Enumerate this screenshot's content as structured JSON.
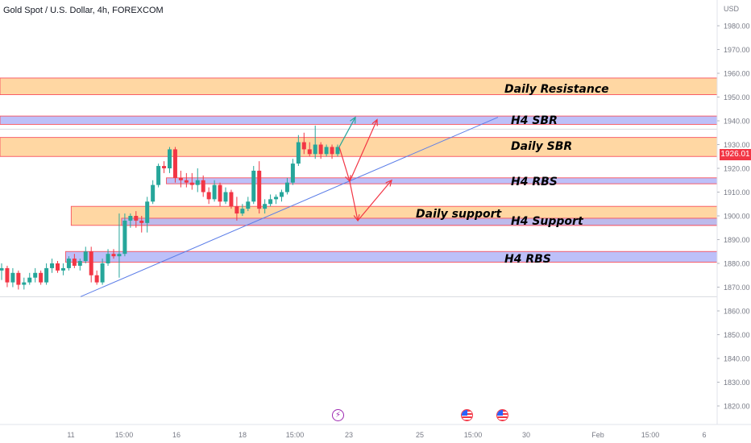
{
  "header": {
    "symbol_title": "Gold Spot / U.S. Dollar, 4h, FOREXCOM",
    "currency": "USD",
    "last_price_label": "1926.01"
  },
  "colors": {
    "up": "#26a69a",
    "down": "#f23645",
    "orange_zone": "#ffd59e",
    "orange_zone_border": "#f7525f",
    "blue_zone": "#b2b5f8",
    "blue_zone_border": "#f7525f",
    "trendline": "#5b7de8"
  },
  "price_axis": {
    "ticks": [
      "1980.00",
      "1970.00",
      "1960.00",
      "1950.00",
      "1940.00",
      "1930.00",
      "1920.00",
      "1910.00",
      "1900.00",
      "1890.00",
      "1880.00",
      "1870.00",
      "1860.00",
      "1850.00",
      "1840.00",
      "1830.00",
      "1820.00"
    ]
  },
  "time_axis": {
    "ticks": [
      "11",
      "15:00",
      "16",
      "18",
      "15:00",
      "23",
      "25",
      "15:00",
      "30",
      "Feb",
      "15:00",
      "6"
    ]
  },
  "zones": [
    {
      "name": "Daily Resistance",
      "type": "orange",
      "top": 1958,
      "bottom": 1951,
      "start_bar": 0
    },
    {
      "name": "H4 SBR",
      "type": "blue",
      "top": 1942,
      "bottom": 1938.5,
      "start_bar": 0
    },
    {
      "name": "Daily SBR",
      "type": "orange",
      "top": 1933,
      "bottom": 1925,
      "start_bar": 0
    },
    {
      "name": "H4 RBS",
      "type": "blue",
      "top": 1916,
      "bottom": 1913.5,
      "start_bar": 30
    },
    {
      "name": "Daily support",
      "type": "orange",
      "top": 1904,
      "bottom": 1896,
      "start_bar": 13
    },
    {
      "name": "H4 Support",
      "type": "blue",
      "top": 1899,
      "bottom": 1896,
      "start_bar": 22
    },
    {
      "name": "H4 RBS",
      "type": "blue",
      "top": 1885,
      "bottom": 1880.5,
      "start_bar": 12
    }
  ],
  "chart_data": {
    "type": "candlestick",
    "title": "Gold Spot / U.S. Dollar, 4h, FOREXCOM",
    "ylabel": "USD",
    "ylim": [
      1815,
      1985
    ],
    "last_price": 1926.01,
    "candles": [
      {
        "o": 1877,
        "h": 1880,
        "l": 1873,
        "c": 1878
      },
      {
        "o": 1878,
        "h": 1879,
        "l": 1870,
        "c": 1872
      },
      {
        "o": 1872,
        "h": 1878,
        "l": 1870,
        "c": 1876
      },
      {
        "o": 1876,
        "h": 1877,
        "l": 1869,
        "c": 1871
      },
      {
        "o": 1871,
        "h": 1874,
        "l": 1869,
        "c": 1872
      },
      {
        "o": 1872,
        "h": 1876,
        "l": 1871,
        "c": 1874
      },
      {
        "o": 1874,
        "h": 1878,
        "l": 1872,
        "c": 1876
      },
      {
        "o": 1876,
        "h": 1877,
        "l": 1871,
        "c": 1872
      },
      {
        "o": 1872,
        "h": 1880,
        "l": 1871,
        "c": 1878
      },
      {
        "o": 1878,
        "h": 1882,
        "l": 1876,
        "c": 1880
      },
      {
        "o": 1880,
        "h": 1881,
        "l": 1876,
        "c": 1877
      },
      {
        "o": 1877,
        "h": 1880,
        "l": 1875,
        "c": 1878
      },
      {
        "o": 1878,
        "h": 1883,
        "l": 1877,
        "c": 1882
      },
      {
        "o": 1882,
        "h": 1884,
        "l": 1878,
        "c": 1879
      },
      {
        "o": 1879,
        "h": 1882,
        "l": 1877,
        "c": 1881
      },
      {
        "o": 1881,
        "h": 1887,
        "l": 1880,
        "c": 1885
      },
      {
        "o": 1885,
        "h": 1887,
        "l": 1872,
        "c": 1875
      },
      {
        "o": 1875,
        "h": 1877,
        "l": 1871,
        "c": 1872
      },
      {
        "o": 1872,
        "h": 1882,
        "l": 1871,
        "c": 1880
      },
      {
        "o": 1880,
        "h": 1886,
        "l": 1879,
        "c": 1884
      },
      {
        "o": 1884,
        "h": 1886,
        "l": 1882,
        "c": 1883
      },
      {
        "o": 1883,
        "h": 1901,
        "l": 1874,
        "c": 1884
      },
      {
        "o": 1884,
        "h": 1901,
        "l": 1883,
        "c": 1898
      },
      {
        "o": 1898,
        "h": 1901,
        "l": 1895,
        "c": 1900
      },
      {
        "o": 1900,
        "h": 1902,
        "l": 1895,
        "c": 1898
      },
      {
        "o": 1898,
        "h": 1900,
        "l": 1893,
        "c": 1897
      },
      {
        "o": 1897,
        "h": 1908,
        "l": 1893,
        "c": 1906
      },
      {
        "o": 1906,
        "h": 1915,
        "l": 1905,
        "c": 1913
      },
      {
        "o": 1913,
        "h": 1922,
        "l": 1912,
        "c": 1921
      },
      {
        "o": 1921,
        "h": 1923,
        "l": 1918,
        "c": 1920
      },
      {
        "o": 1920,
        "h": 1929,
        "l": 1918,
        "c": 1928
      },
      {
        "o": 1928,
        "h": 1929,
        "l": 1914,
        "c": 1916
      },
      {
        "o": 1916,
        "h": 1919,
        "l": 1912,
        "c": 1915
      },
      {
        "o": 1915,
        "h": 1918,
        "l": 1912,
        "c": 1914
      },
      {
        "o": 1914,
        "h": 1918,
        "l": 1911,
        "c": 1913
      },
      {
        "o": 1913,
        "h": 1920,
        "l": 1910,
        "c": 1915
      },
      {
        "o": 1915,
        "h": 1917,
        "l": 1908,
        "c": 1910
      },
      {
        "o": 1910,
        "h": 1912,
        "l": 1905,
        "c": 1907
      },
      {
        "o": 1907,
        "h": 1915,
        "l": 1906,
        "c": 1913
      },
      {
        "o": 1913,
        "h": 1914,
        "l": 1904,
        "c": 1906
      },
      {
        "o": 1906,
        "h": 1912,
        "l": 1905,
        "c": 1910
      },
      {
        "o": 1910,
        "h": 1911,
        "l": 1903,
        "c": 1904
      },
      {
        "o": 1904,
        "h": 1908,
        "l": 1898,
        "c": 1901
      },
      {
        "o": 1901,
        "h": 1905,
        "l": 1900,
        "c": 1903
      },
      {
        "o": 1903,
        "h": 1908,
        "l": 1902,
        "c": 1906
      },
      {
        "o": 1906,
        "h": 1921,
        "l": 1905,
        "c": 1919
      },
      {
        "o": 1919,
        "h": 1923,
        "l": 1901,
        "c": 1903
      },
      {
        "o": 1903,
        "h": 1907,
        "l": 1901,
        "c": 1905
      },
      {
        "o": 1905,
        "h": 1909,
        "l": 1904,
        "c": 1907
      },
      {
        "o": 1907,
        "h": 1909,
        "l": 1905,
        "c": 1908
      },
      {
        "o": 1908,
        "h": 1911,
        "l": 1906,
        "c": 1910
      },
      {
        "o": 1910,
        "h": 1916,
        "l": 1909,
        "c": 1914
      },
      {
        "o": 1914,
        "h": 1924,
        "l": 1913,
        "c": 1922
      },
      {
        "o": 1922,
        "h": 1934,
        "l": 1921,
        "c": 1931
      },
      {
        "o": 1931,
        "h": 1935,
        "l": 1926,
        "c": 1928
      },
      {
        "o": 1928,
        "h": 1931,
        "l": 1925,
        "c": 1926
      },
      {
        "o": 1926,
        "h": 1938,
        "l": 1924,
        "c": 1930
      },
      {
        "o": 1930,
        "h": 1931,
        "l": 1924,
        "c": 1926
      },
      {
        "o": 1926,
        "h": 1930,
        "l": 1925,
        "c": 1929
      },
      {
        "o": 1929,
        "h": 1930,
        "l": 1924,
        "c": 1926
      },
      {
        "o": 1926,
        "h": 1930,
        "l": 1925,
        "c": 1929
      }
    ]
  }
}
